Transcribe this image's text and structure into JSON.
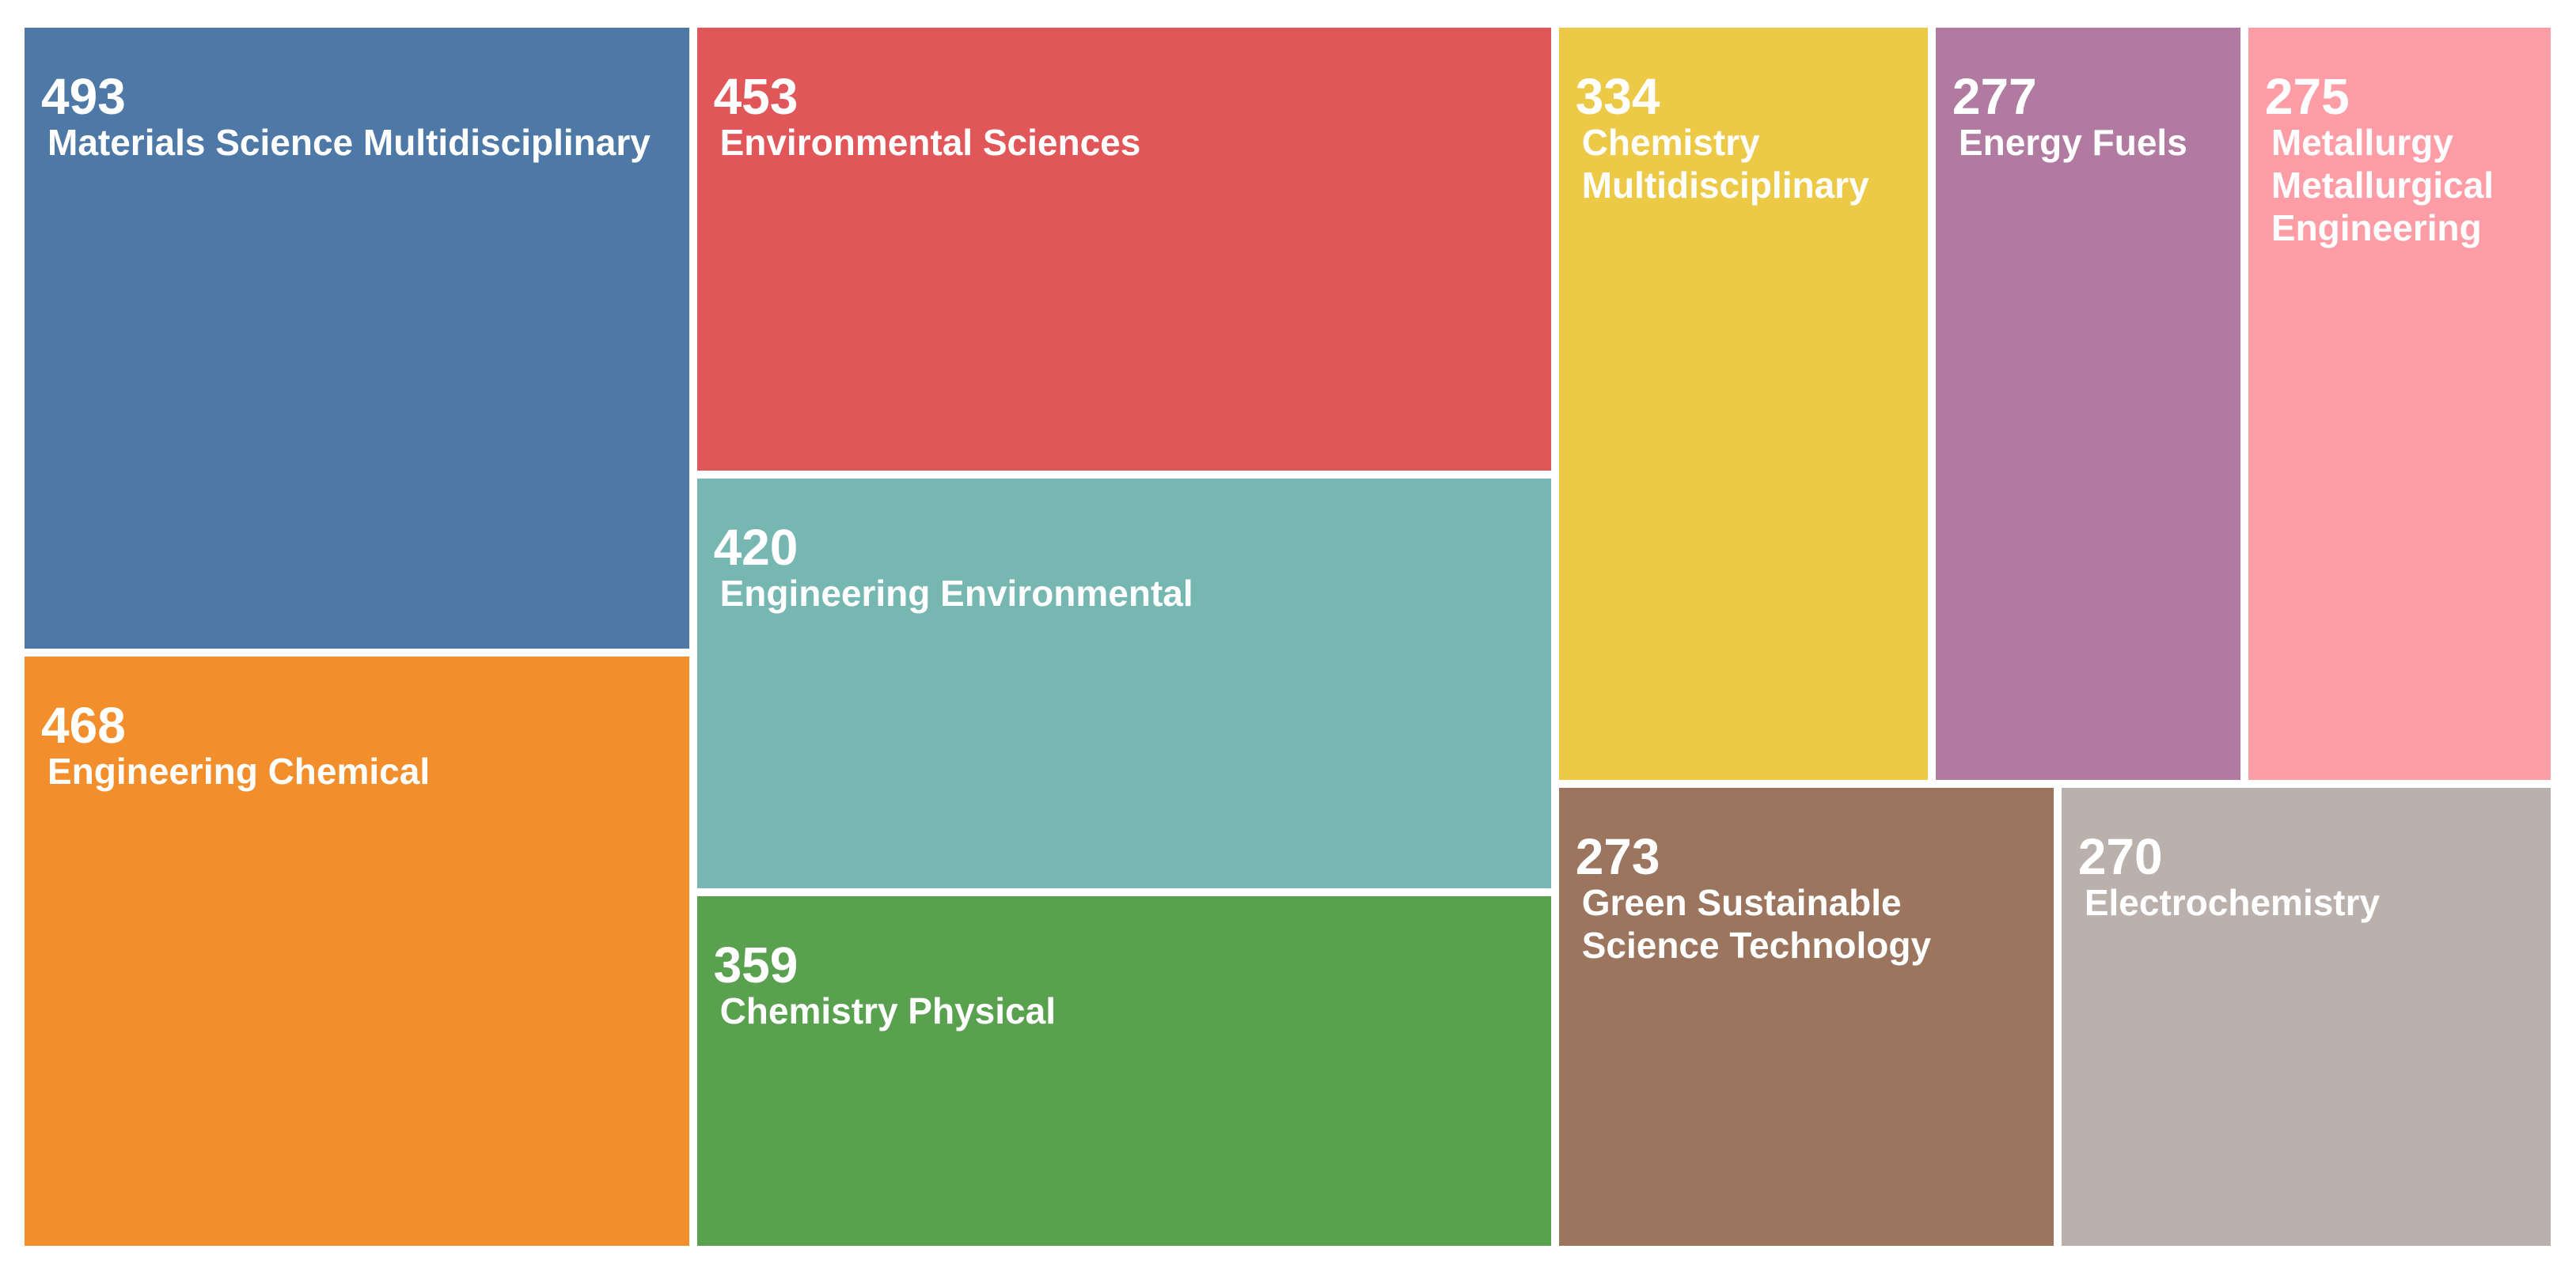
{
  "chart_data": {
    "type": "treemap",
    "items": [
      {
        "label": "Materials Science Multidisciplinary",
        "value": 493,
        "color": "#4e79a7"
      },
      {
        "label": "Engineering Chemical",
        "value": 468,
        "color": "#f28e2b"
      },
      {
        "label": "Environmental Sciences",
        "value": 453,
        "color": "#e15759"
      },
      {
        "label": "Engineering Environmental",
        "value": 420,
        "color": "#76b7b2"
      },
      {
        "label": "Chemistry Physical",
        "value": 359,
        "color": "#59a14f"
      },
      {
        "label": "Chemistry Multidisciplinary",
        "value": 334,
        "color": "#edc948"
      },
      {
        "label": "Energy Fuels",
        "value": 277,
        "color": "#b07aa1"
      },
      {
        "label": "Metallurgy Metallurgical Engineering",
        "value": 275,
        "color": "#ff9da7"
      },
      {
        "label": "Green Sustainable Science Technology",
        "value": 273,
        "color": "#9c755f"
      },
      {
        "label": "Electrochemistry",
        "value": 270,
        "color": "#bab0ac"
      }
    ]
  }
}
